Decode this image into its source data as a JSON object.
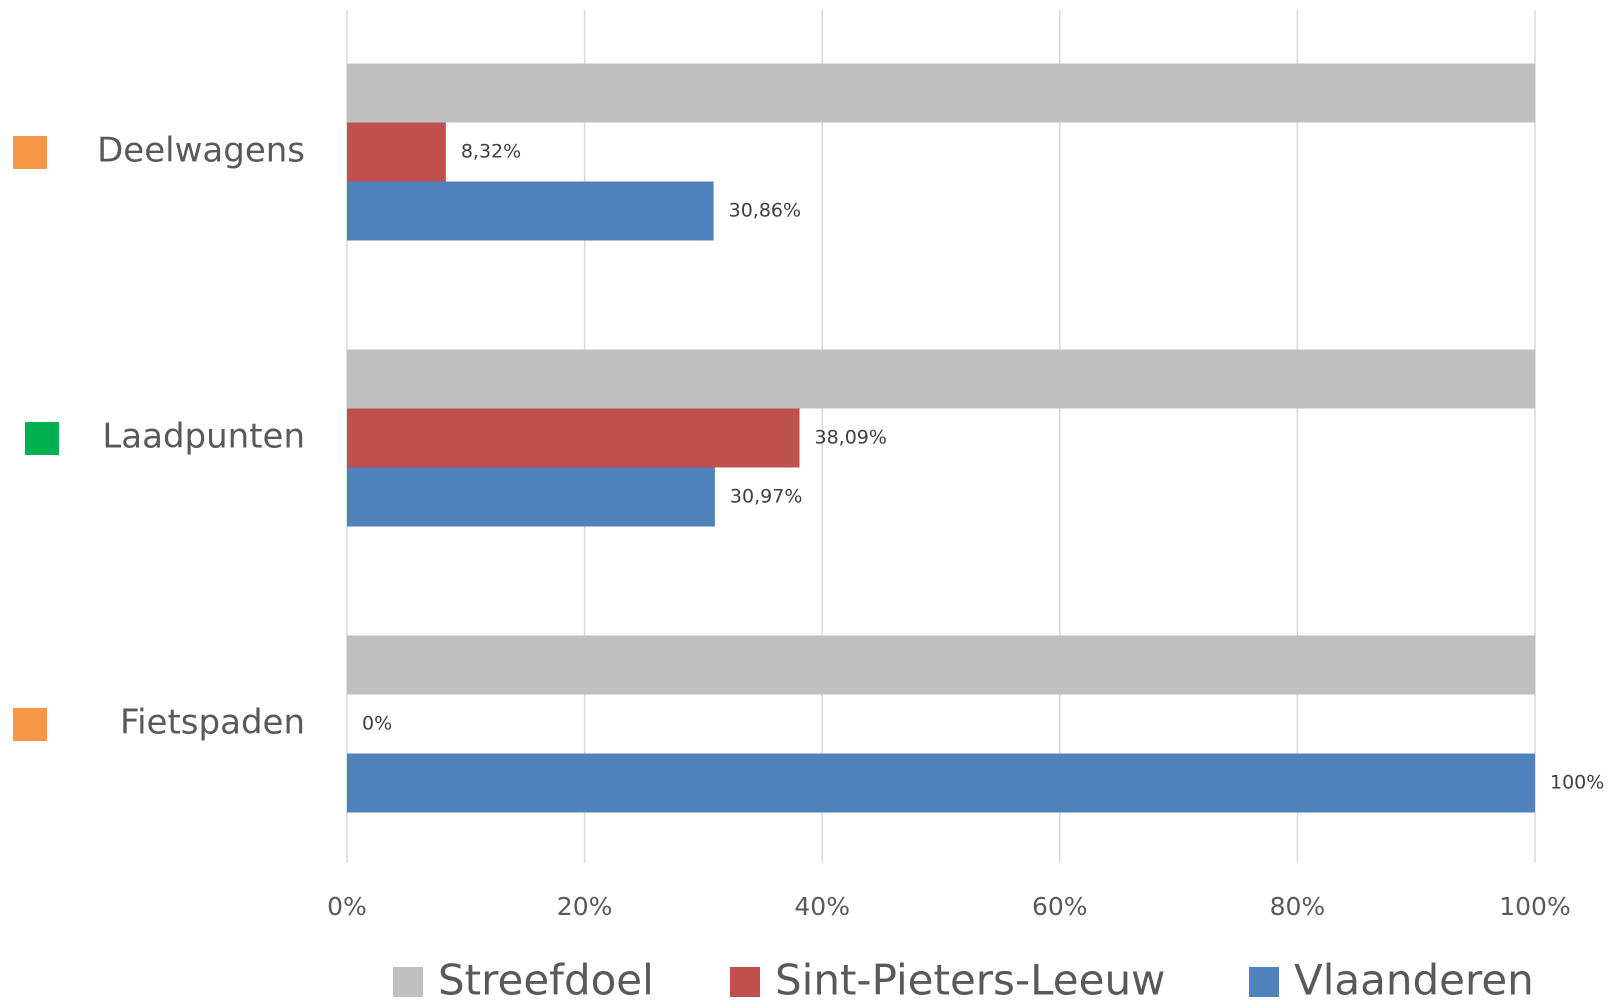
{
  "chart_data": {
    "type": "hbar",
    "categories": [
      "Deelwagens",
      "Laadpunten",
      "Fietspaden"
    ],
    "category_colors": [
      "#f79646",
      "#00b050",
      "#f79646"
    ],
    "series": [
      {
        "name": "Streefdoel",
        "color": "#bfbfbf",
        "values": [
          100,
          100,
          100
        ]
      },
      {
        "name": "Sint-Pieters-Leeuw",
        "color": "#c0504d",
        "values": [
          8.32,
          38.09,
          0
        ],
        "value_labels": [
          "8,32%",
          "38,09%",
          "0%"
        ]
      },
      {
        "name": "Vlaanderen",
        "color": "#4f81bd",
        "values": [
          30.86,
          30.97,
          100
        ],
        "value_labels": [
          "30,86%",
          "30,97%",
          "100%"
        ]
      }
    ],
    "xlim": [
      0,
      100
    ],
    "xticks": [
      {
        "value": 0,
        "label": "0%"
      },
      {
        "value": 20,
        "label": "20%"
      },
      {
        "value": 40,
        "label": "40%"
      },
      {
        "value": 60,
        "label": "60%"
      },
      {
        "value": 80,
        "label": "80%"
      },
      {
        "value": 100,
        "label": "100%"
      }
    ],
    "grid": true
  }
}
